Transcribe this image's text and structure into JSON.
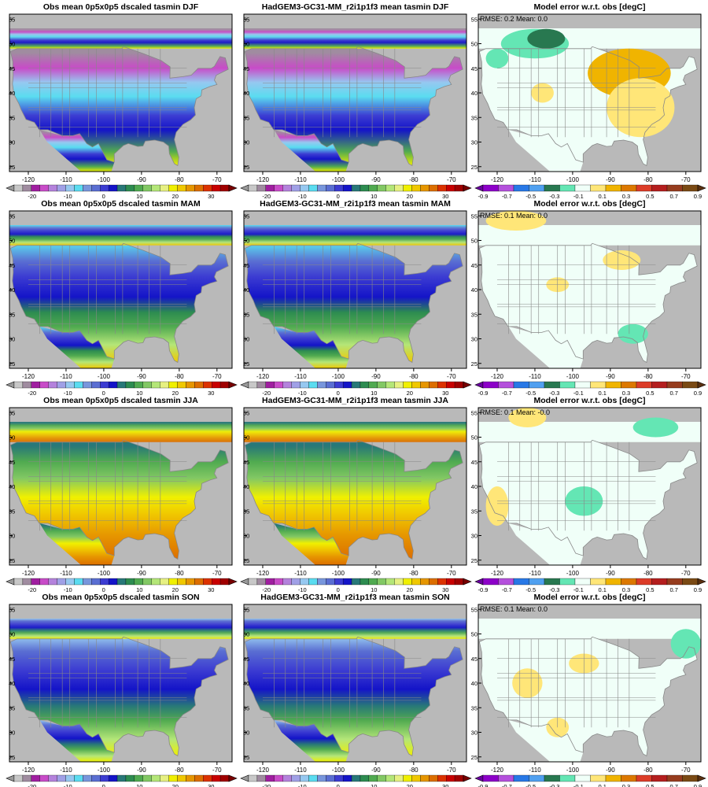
{
  "figure": {
    "rows": [
      {
        "season": "DJF",
        "obs_title": "Obs mean 0p5x0p5 dscaled tasmin DJF",
        "model_title": "HadGEM3-GC31-MM_r2i1p1f3 mean tasmin DJF",
        "err_title": "Model error w.r.t. obs [degC]",
        "stats": "RMSE: 0.2  Mean: 0.0",
        "dominant_bias": "mixed positive east, negative north-west"
      },
      {
        "season": "MAM",
        "obs_title": "Obs mean 0p5x0p5 dscaled tasmin MAM",
        "model_title": "HadGEM3-GC31-MM_r2i1p1f3 mean tasmin MAM",
        "err_title": "Model error w.r.t. obs [degC]",
        "stats": "RMSE: 0.1  Mean: 0.0",
        "dominant_bias": "small positive north, negative south-east"
      },
      {
        "season": "JJA",
        "obs_title": "Obs mean 0p5x0p5 dscaled tasmin JJA",
        "model_title": "HadGEM3-GC31-MM_r2i1p1f3 mean tasmin JJA",
        "err_title": "Model error w.r.t. obs [degC]",
        "stats": "RMSE: 0.1  Mean: -0.0",
        "dominant_bias": "positive west, negative central"
      },
      {
        "season": "SON",
        "obs_title": "Obs mean 0p5x0p5 dscaled tasmin SON",
        "model_title": "HadGEM3-GC31-MM_r2i1p1f3 mean tasmin SON",
        "err_title": "Model error w.r.t. obs [degC]",
        "stats": "RMSE: 0.1  Mean: 0.0",
        "dominant_bias": "positive west, negative north-east"
      }
    ],
    "lon_ticks": [
      "-120",
      "-110",
      "-100",
      "-90",
      "-80",
      "-70"
    ],
    "lat_ticks": [
      "25",
      "30",
      "35",
      "40",
      "45",
      "50",
      "55"
    ],
    "temp_colorbar": {
      "labels": [
        "-20",
        "-10",
        "0",
        "10",
        "20",
        "30"
      ],
      "colors": [
        "#c8c8c8",
        "#a08ca0",
        "#a01ea0",
        "#c84bc8",
        "#b482dc",
        "#a0a0e6",
        "#96c8f0",
        "#5adcf0",
        "#7896dc",
        "#5a6ed2",
        "#3c3cd2",
        "#1414c8",
        "#287878",
        "#2d8c50",
        "#50aa50",
        "#82c864",
        "#b4e678",
        "#e6f082",
        "#f0f000",
        "#f0c800",
        "#e69600",
        "#dc6e00",
        "#dc3200",
        "#c80000",
        "#a00000"
      ],
      "under": "#9a9a9a",
      "over": "#780000"
    },
    "err_colorbar": {
      "labels": [
        "-0.9",
        "-0.7",
        "-0.5",
        "-0.3",
        "-0.1",
        "0.1",
        "0.3",
        "0.5",
        "0.7",
        "0.9"
      ],
      "colors": [
        "#8c00c8",
        "#b450dc",
        "#2878e6",
        "#50a0f0",
        "#287850",
        "#64e6b4",
        "#f0fff8",
        "#ffe678",
        "#f0b400",
        "#dc7800",
        "#dc3c28",
        "#b41e1e",
        "#963c1e",
        "#7a4a14"
      ],
      "under": "#6a00a0",
      "over": "#5a3010"
    },
    "colors": {
      "land_mask": "#b9b9b9",
      "border": "#888888",
      "frame": "#000000"
    }
  }
}
